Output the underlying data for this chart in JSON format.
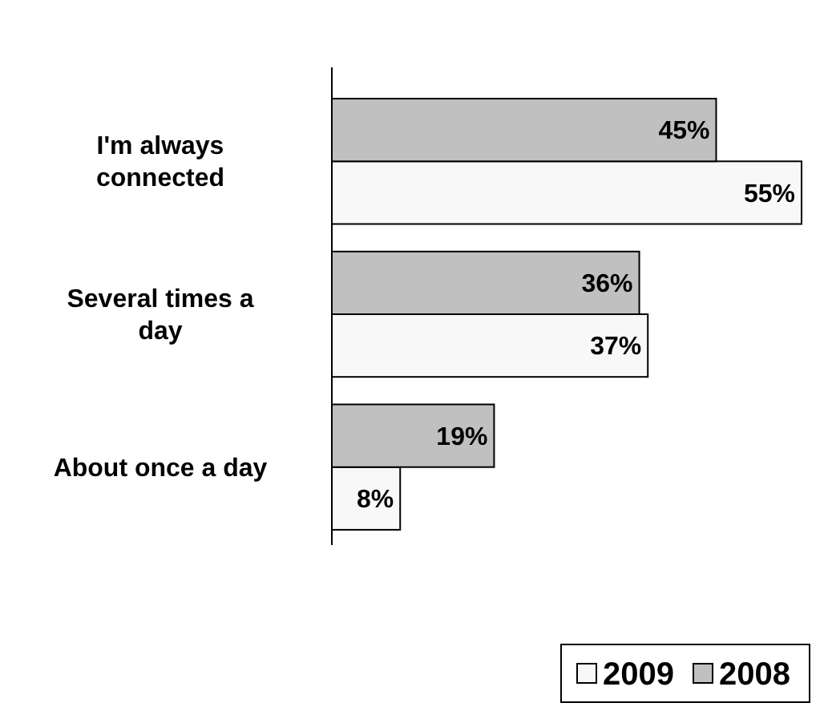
{
  "chart_data": {
    "type": "bar",
    "orientation": "horizontal",
    "categories": [
      "I'm always connected",
      "Several times a day",
      "About once a day"
    ],
    "series": [
      {
        "name": "2009",
        "color": "#f8f8f8",
        "values": [
          55,
          37,
          8
        ],
        "value_labels": [
          "55%",
          "37%",
          "8%"
        ]
      },
      {
        "name": "2008",
        "color": "#c0c0c0",
        "values": [
          45,
          36,
          19
        ],
        "value_labels": [
          "45%",
          "36%",
          "19%"
        ]
      }
    ],
    "legend": "bottom right"
  }
}
